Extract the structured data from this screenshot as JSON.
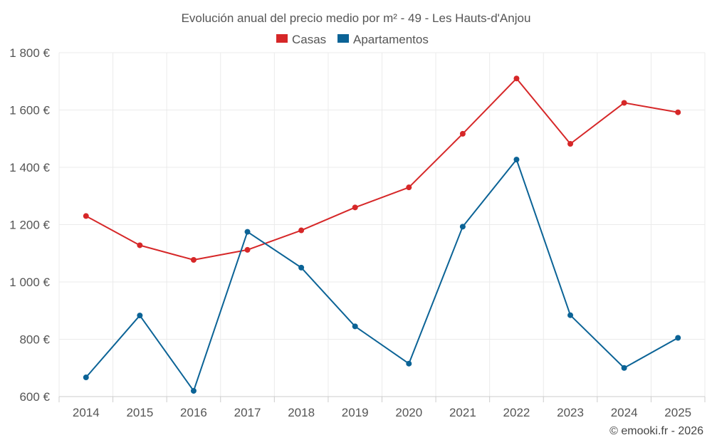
{
  "chart_data": {
    "type": "line",
    "title": "Evolución anual del precio medio por m² - 49 - Les Hauts-d'Anjou",
    "categories": [
      "2014",
      "2015",
      "2016",
      "2017",
      "2018",
      "2019",
      "2020",
      "2021",
      "2022",
      "2023",
      "2024",
      "2025"
    ],
    "series": [
      {
        "name": "Casas",
        "color": "#d62728",
        "values": [
          1230,
          1128,
          1077,
          1112,
          1180,
          1260,
          1330,
          1517,
          1710,
          1482,
          1625,
          1592
        ]
      },
      {
        "name": "Apartamentos",
        "color": "#0b6396",
        "values": [
          667,
          883,
          620,
          1175,
          1050,
          845,
          715,
          1193,
          1427,
          884,
          700,
          805
        ]
      }
    ],
    "ylim": [
      600,
      1800
    ],
    "yticks": [
      600,
      800,
      1000,
      1200,
      1400,
      1600,
      1800
    ],
    "ytick_labels": [
      "600 €",
      "800 €",
      "1 000 €",
      "1 200 €",
      "1 400 €",
      "1 600 €",
      "1 800 €"
    ],
    "xlabel": "",
    "ylabel": "",
    "grid": true,
    "legend_position": "top-center"
  },
  "credit": "© emooki.fr - 2026"
}
